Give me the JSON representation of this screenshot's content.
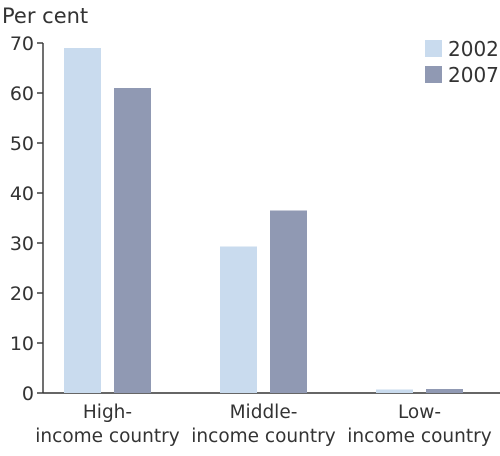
{
  "chart_data": {
    "type": "bar",
    "title": "",
    "ylabel": "Per cent",
    "xlabel": "",
    "categories": [
      [
        "High-",
        "income country"
      ],
      [
        "Middle-",
        "income country"
      ],
      [
        "Low-",
        "income country"
      ]
    ],
    "series": [
      {
        "name": "2002",
        "color": "#c9dbee",
        "values": [
          69,
          29.3,
          0.7
        ]
      },
      {
        "name": "2007",
        "color": "#9099b3",
        "values": [
          61,
          36.5,
          0.8
        ]
      }
    ],
    "ylim": [
      0,
      70
    ],
    "yticks": [
      0,
      10,
      20,
      30,
      40,
      50,
      60,
      70
    ],
    "grid": false,
    "legend_position": "top-right",
    "colors": {
      "axis": "#333333",
      "text": "#333333"
    }
  }
}
